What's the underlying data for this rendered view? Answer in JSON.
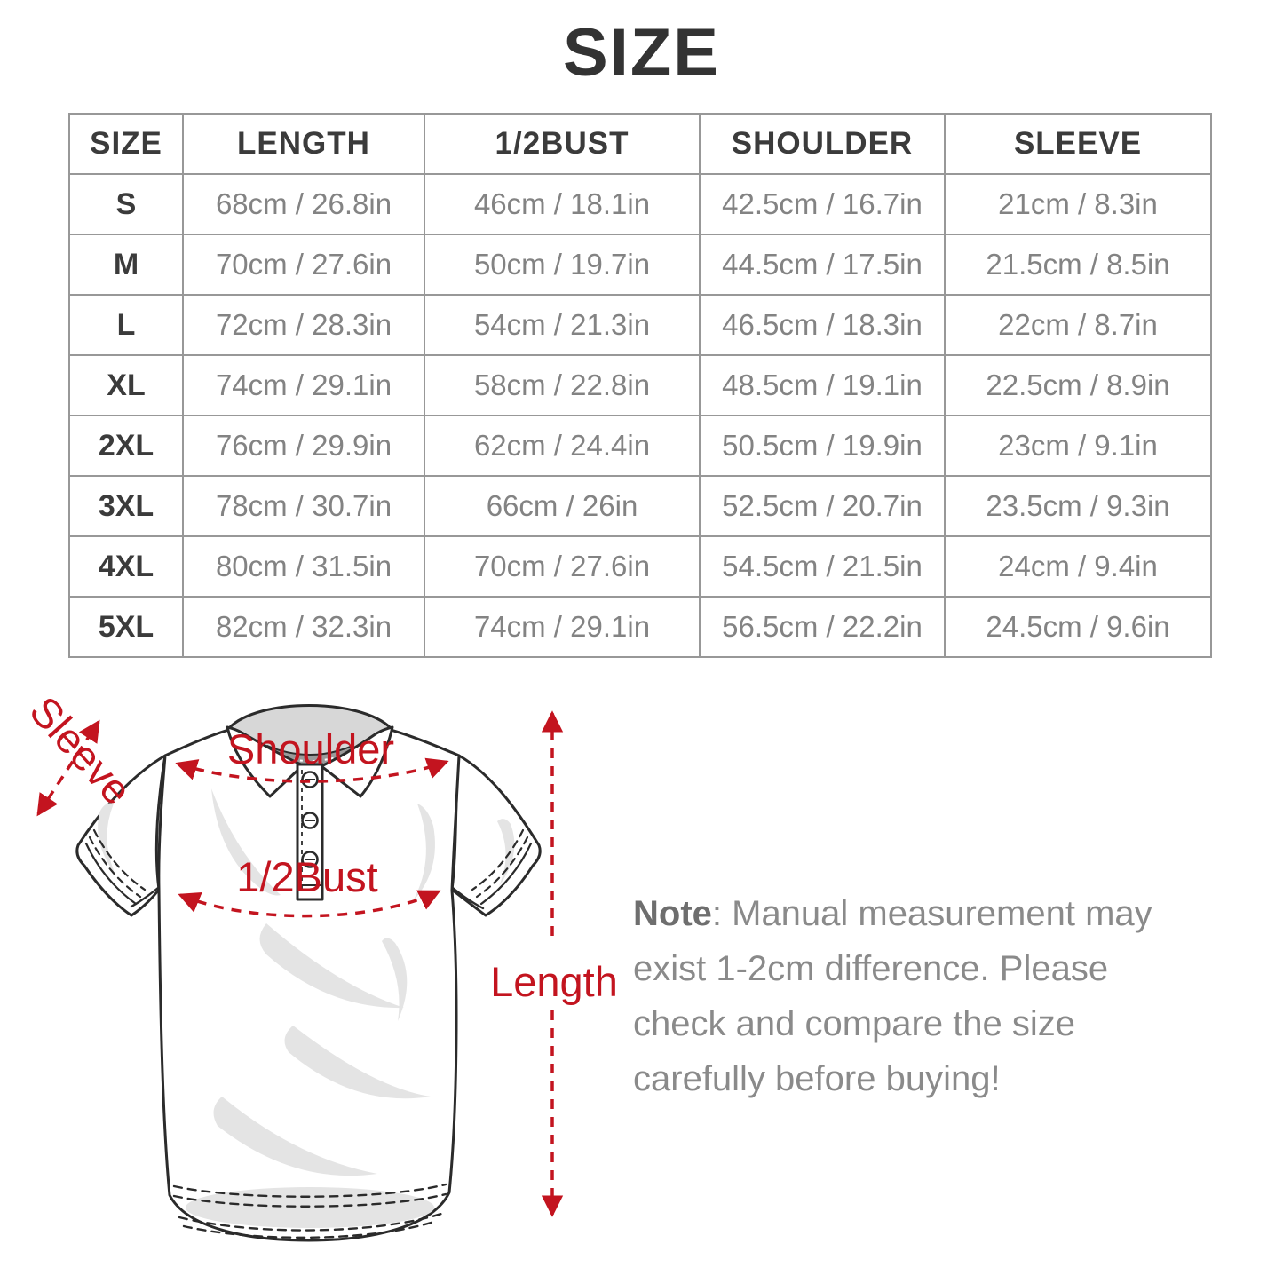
{
  "page_title": "SIZE",
  "table": {
    "headers": [
      "SIZE",
      "LENGTH",
      "1/2BUST",
      "SHOULDER",
      "SLEEVE"
    ],
    "rows": [
      [
        "S",
        "68cm / 26.8in",
        "46cm / 18.1in",
        "42.5cm / 16.7in",
        "21cm / 8.3in"
      ],
      [
        "M",
        "70cm / 27.6in",
        "50cm / 19.7in",
        "44.5cm / 17.5in",
        "21.5cm / 8.5in"
      ],
      [
        "L",
        "72cm / 28.3in",
        "54cm / 21.3in",
        "46.5cm / 18.3in",
        "22cm / 8.7in"
      ],
      [
        "XL",
        "74cm / 29.1in",
        "58cm / 22.8in",
        "48.5cm / 19.1in",
        "22.5cm / 8.9in"
      ],
      [
        "2XL",
        "76cm / 29.9in",
        "62cm / 24.4in",
        "50.5cm / 19.9in",
        "23cm / 9.1in"
      ],
      [
        "3XL",
        "78cm / 30.7in",
        "66cm / 26in",
        "52.5cm / 20.7in",
        "23.5cm / 9.3in"
      ],
      [
        "4XL",
        "80cm / 31.5in",
        "70cm / 27.6in",
        "54.5cm / 21.5in",
        "24cm / 9.4in"
      ],
      [
        "5XL",
        "82cm / 32.3in",
        "74cm / 29.1in",
        "56.5cm / 22.2in",
        "24.5cm / 9.6in"
      ]
    ]
  },
  "diagram": {
    "labels": {
      "sleeve": "Sleeve",
      "shoulder": "Shoulder",
      "half_bust": "1/2Bust",
      "length": "Length"
    },
    "accent_color": "#c3141f",
    "outline_color": "#2b2b2b"
  },
  "note": {
    "prefix": "Note",
    "text": ": Manual measurement may exist 1-2cm difference. Please check and compare the size carefully before buying!"
  }
}
